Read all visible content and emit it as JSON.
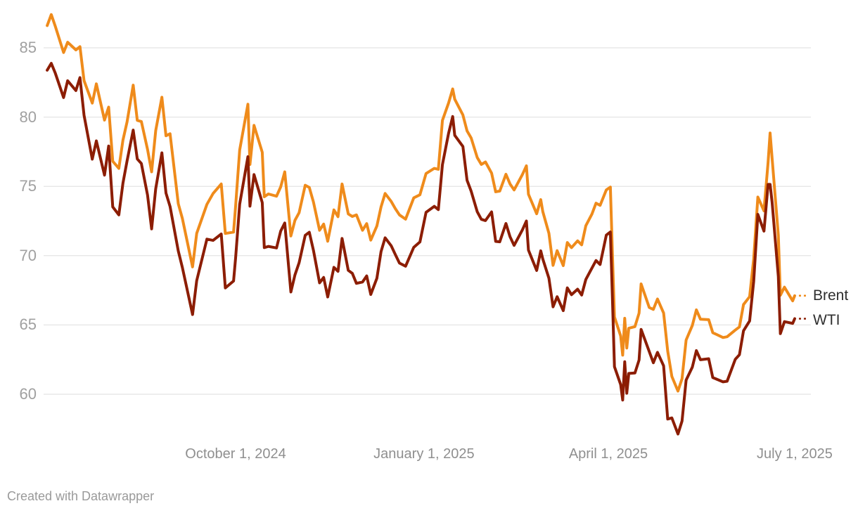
{
  "footer": {
    "credit": "Created with Datawrapper"
  },
  "chart_data": {
    "type": "line",
    "title": "",
    "ylabel": "",
    "xlabel": "",
    "grid": "horizontal",
    "legend_position": "right-end-of-lines",
    "y_axis": {
      "ticks": [
        60,
        65,
        70,
        75,
        80,
        85
      ],
      "range": [
        56.5,
        88.0
      ]
    },
    "x_axis": {
      "ticks": [
        {
          "date": "2024-10-01",
          "label": "October 1, 2024"
        },
        {
          "date": "2025-01-01",
          "label": "January 1, 2025"
        },
        {
          "date": "2025-04-01",
          "label": "April 1, 2025"
        },
        {
          "date": "2025-07-01",
          "label": "July 1, 2025"
        }
      ],
      "range": [
        "2024-06-28",
        "2025-07-10"
      ]
    },
    "colors": {
      "grid": "#e8e8e8",
      "axis_text": "#9c9c9c",
      "legend_text": "#2f2f2f"
    },
    "dates": [
      "2024-07-01",
      "2024-07-03",
      "2024-07-05",
      "2024-07-09",
      "2024-07-11",
      "2024-07-15",
      "2024-07-17",
      "2024-07-19",
      "2024-07-23",
      "2024-07-25",
      "2024-07-29",
      "2024-07-31",
      "2024-08-02",
      "2024-08-05",
      "2024-08-07",
      "2024-08-09",
      "2024-08-12",
      "2024-08-14",
      "2024-08-16",
      "2024-08-19",
      "2024-08-21",
      "2024-08-23",
      "2024-08-26",
      "2024-08-28",
      "2024-08-30",
      "2024-09-03",
      "2024-09-05",
      "2024-09-10",
      "2024-09-12",
      "2024-09-17",
      "2024-09-20",
      "2024-09-24",
      "2024-09-26",
      "2024-09-30",
      "2024-10-01",
      "2024-10-03",
      "2024-10-07",
      "2024-10-08",
      "2024-10-10",
      "2024-10-14",
      "2024-10-15",
      "2024-10-17",
      "2024-10-21",
      "2024-10-23",
      "2024-10-25",
      "2024-10-28",
      "2024-10-30",
      "2024-11-01",
      "2024-11-04",
      "2024-11-06",
      "2024-11-08",
      "2024-11-11",
      "2024-11-13",
      "2024-11-15",
      "2024-11-18",
      "2024-11-20",
      "2024-11-22",
      "2024-11-25",
      "2024-11-27",
      "2024-11-29",
      "2024-12-02",
      "2024-12-04",
      "2024-12-06",
      "2024-12-09",
      "2024-12-11",
      "2024-12-13",
      "2024-12-16",
      "2024-12-18",
      "2024-12-20",
      "2024-12-23",
      "2024-12-27",
      "2024-12-30",
      "2025-01-02",
      "2025-01-06",
      "2025-01-08",
      "2025-01-10",
      "2025-01-13",
      "2025-01-15",
      "2025-01-16",
      "2025-01-20",
      "2025-01-22",
      "2025-01-24",
      "2025-01-27",
      "2025-01-29",
      "2025-01-31",
      "2025-02-03",
      "2025-02-05",
      "2025-02-07",
      "2025-02-10",
      "2025-02-12",
      "2025-02-14",
      "2025-02-18",
      "2025-02-20",
      "2025-02-21",
      "2025-02-25",
      "2025-02-27",
      "2025-02-28",
      "2025-03-03",
      "2025-03-05",
      "2025-03-07",
      "2025-03-10",
      "2025-03-12",
      "2025-03-14",
      "2025-03-17",
      "2025-03-19",
      "2025-03-21",
      "2025-03-24",
      "2025-03-26",
      "2025-03-28",
      "2025-03-31",
      "2025-04-02",
      "2025-04-03",
      "2025-04-04",
      "2025-04-07",
      "2025-04-08",
      "2025-04-09",
      "2025-04-10",
      "2025-04-11",
      "2025-04-14",
      "2025-04-16",
      "2025-04-17",
      "2025-04-21",
      "2025-04-23",
      "2025-04-25",
      "2025-04-28",
      "2025-04-30",
      "2025-05-02",
      "2025-05-05",
      "2025-05-07",
      "2025-05-09",
      "2025-05-12",
      "2025-05-14",
      "2025-05-16",
      "2025-05-20",
      "2025-05-22",
      "2025-05-27",
      "2025-05-29",
      "2025-06-02",
      "2025-06-04",
      "2025-06-06",
      "2025-06-09",
      "2025-06-11",
      "2025-06-13",
      "2025-06-16",
      "2025-06-18",
      "2025-06-19",
      "2025-06-20",
      "2025-06-23",
      "2025-06-24",
      "2025-06-26",
      "2025-06-30",
      "2025-07-01"
    ],
    "series": [
      {
        "name": "Brent",
        "color": "#ef8b1b",
        "values": [
          86.6,
          87.4,
          86.54,
          84.66,
          85.4,
          84.85,
          85.08,
          82.63,
          81.01,
          82.4,
          79.78,
          80.72,
          76.81,
          76.3,
          78.33,
          79.66,
          82.3,
          79.76,
          79.68,
          77.66,
          76.05,
          79.02,
          81.43,
          78.65,
          78.8,
          73.75,
          72.69,
          69.19,
          71.61,
          73.7,
          74.49,
          75.17,
          71.6,
          71.7,
          73.56,
          77.62,
          80.93,
          76.58,
          79.4,
          77.46,
          74.25,
          74.45,
          74.29,
          74.96,
          76.05,
          71.42,
          72.55,
          73.1,
          75.08,
          74.92,
          73.87,
          71.83,
          72.28,
          71.04,
          73.3,
          72.81,
          75.17,
          73.01,
          72.83,
          72.94,
          71.83,
          72.31,
          71.12,
          72.14,
          73.52,
          74.49,
          73.91,
          73.39,
          72.94,
          72.63,
          74.17,
          74.39,
          75.93,
          76.3,
          76.23,
          79.76,
          81.01,
          82.03,
          81.29,
          80.15,
          79.0,
          78.5,
          77.08,
          76.58,
          76.76,
          75.96,
          74.61,
          74.66,
          75.87,
          75.18,
          74.74,
          75.84,
          76.48,
          74.43,
          73.02,
          74.04,
          73.18,
          71.62,
          69.3,
          70.36,
          69.28,
          70.95,
          70.58,
          71.07,
          70.78,
          72.16,
          73.0,
          73.79,
          73.63,
          74.74,
          74.95,
          70.14,
          65.58,
          64.21,
          62.82,
          65.48,
          63.33,
          64.76,
          64.88,
          65.85,
          67.96,
          66.26,
          66.12,
          66.87,
          65.86,
          63.12,
          61.29,
          60.23,
          61.12,
          63.91,
          64.96,
          66.09,
          65.41,
          65.38,
          64.44,
          64.09,
          64.15,
          64.63,
          64.86,
          66.47,
          67.04,
          69.77,
          74.23,
          73.23,
          76.7,
          78.85,
          77.01,
          71.48,
          67.14,
          67.73,
          66.74,
          67.11
        ]
      },
      {
        "name": "WTI",
        "color": "#8c1d03",
        "values": [
          83.38,
          83.88,
          83.16,
          81.41,
          82.62,
          81.91,
          82.85,
          80.13,
          76.96,
          78.28,
          75.81,
          77.91,
          73.52,
          72.94,
          75.23,
          76.84,
          79.06,
          76.98,
          76.65,
          74.37,
          71.93,
          74.83,
          77.42,
          74.52,
          73.55,
          70.34,
          69.15,
          65.75,
          68.2,
          71.19,
          71.1,
          71.56,
          67.67,
          68.17,
          69.83,
          73.71,
          77.14,
          73.57,
          75.85,
          73.83,
          70.58,
          70.67,
          70.56,
          71.77,
          72.36,
          67.38,
          68.61,
          69.49,
          71.47,
          71.69,
          70.38,
          68.04,
          68.43,
          67.02,
          69.16,
          68.87,
          71.24,
          68.94,
          68.72,
          68.0,
          68.1,
          68.54,
          67.2,
          68.37,
          70.29,
          71.29,
          70.71,
          70.08,
          69.46,
          69.24,
          70.6,
          70.99,
          73.13,
          73.56,
          73.32,
          76.57,
          78.82,
          80.04,
          78.68,
          77.88,
          75.44,
          74.66,
          73.17,
          72.62,
          72.53,
          73.16,
          71.03,
          71.0,
          72.32,
          71.37,
          70.74,
          71.85,
          72.5,
          70.4,
          68.93,
          70.35,
          69.76,
          68.37,
          66.31,
          67.04,
          66.03,
          67.68,
          67.18,
          67.58,
          67.16,
          68.28,
          69.11,
          69.65,
          69.36,
          71.48,
          71.71,
          66.95,
          61.99,
          60.7,
          59.58,
          62.35,
          60.07,
          61.5,
          61.53,
          62.47,
          64.68,
          63.08,
          62.27,
          63.02,
          62.05,
          58.21,
          58.29,
          57.13,
          58.07,
          61.02,
          61.95,
          63.15,
          62.49,
          62.56,
          61.2,
          60.89,
          60.94,
          62.52,
          62.85,
          64.58,
          65.29,
          68.15,
          72.98,
          71.77,
          75.14,
          75.14,
          73.84,
          68.51,
          64.37,
          65.24,
          65.11,
          65.45
        ]
      }
    ]
  }
}
